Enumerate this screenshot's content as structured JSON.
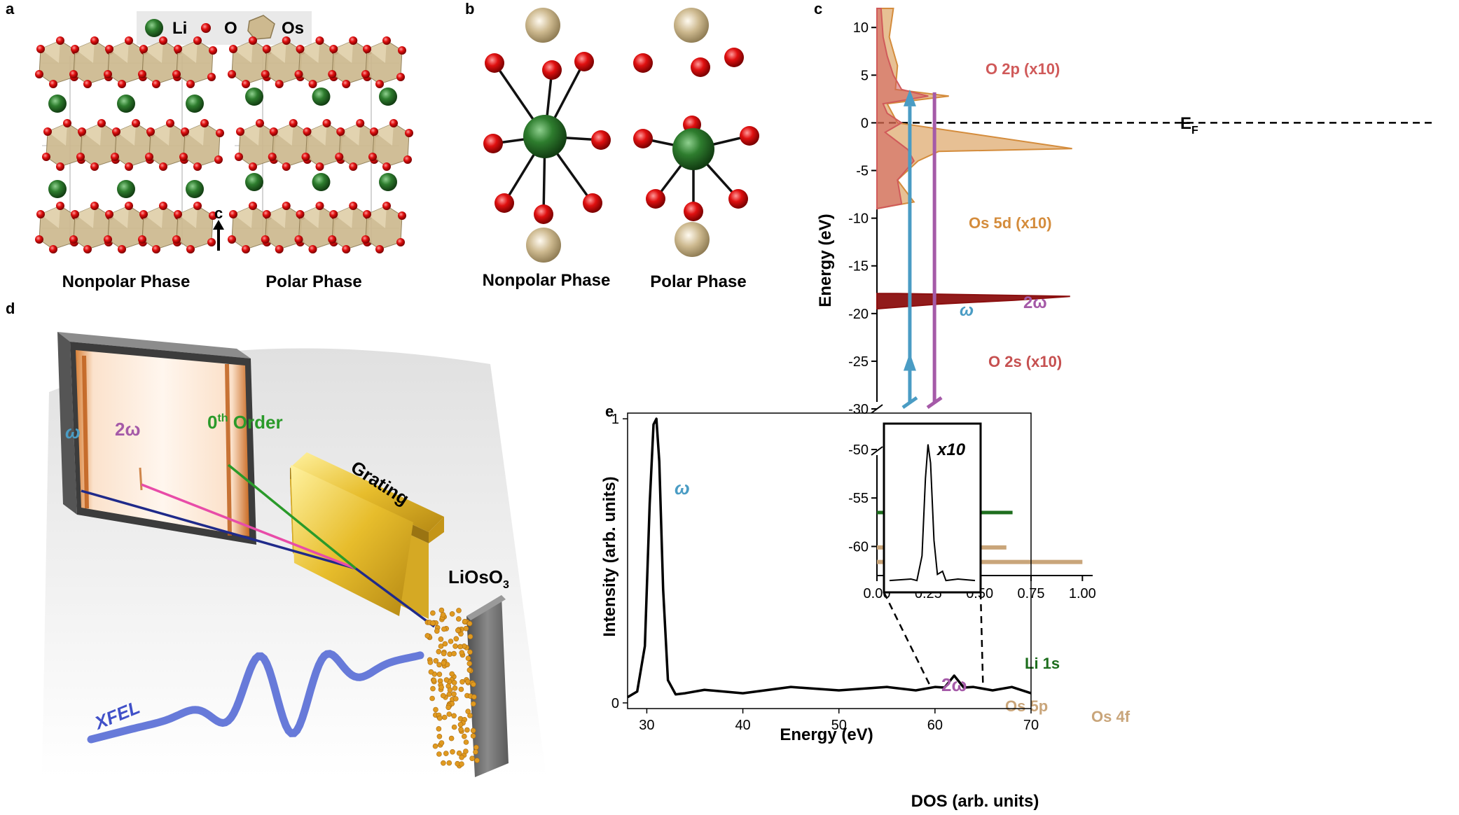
{
  "panels": {
    "a": {
      "letter": "a",
      "legend": [
        "Li",
        "O",
        "Os"
      ],
      "axis_label": "c",
      "captions": [
        "Nonpolar Phase",
        "Polar Phase"
      ]
    },
    "b": {
      "letter": "b",
      "captions": [
        "Nonpolar Phase",
        "Polar Phase"
      ]
    },
    "c": {
      "letter": "c",
      "ylabel": "Energy (eV)",
      "xlabel": "DOS  (arb. units)",
      "upper_yticks": [
        "10",
        "5",
        "0",
        "-5",
        "-10",
        "-15",
        "-20",
        "-25",
        "-30"
      ],
      "lower_yticks": [
        "-50",
        "-55",
        "-60"
      ],
      "xticks": [
        "0.00",
        "0.25",
        "0.50",
        "0.75",
        "1.00"
      ],
      "fermi_label": "E",
      "fermi_sub": "F",
      "labels": {
        "o2p": "O 2p (x10)",
        "os5d": "Os 5d (x10)",
        "o2s": "O 2s (x10)",
        "li1s": "Li 1s",
        "os5p": "Os 5p",
        "os4f": "Os 4f",
        "omega": "ω",
        "two_omega": "2ω"
      }
    },
    "d": {
      "letter": "d",
      "omega": "ω",
      "two_omega": "2ω",
      "zero_order": "0",
      "zero_order_sup": "th",
      "zero_order_word": " Order",
      "grating": "Grating",
      "sample": "LiOsO",
      "sample_sub": "3",
      "xfel": "XFEL"
    },
    "e": {
      "letter": "e",
      "ylabel": "Intensity (arb. units)",
      "xlabel": "Energy (eV)",
      "xticks": [
        "30",
        "40",
        "50",
        "60",
        "70"
      ],
      "yticks": [
        "1",
        "0"
      ],
      "omega": "ω",
      "two_omega": "2ω",
      "inset_label": "x10"
    }
  },
  "colors": {
    "li": "#2e7d2e",
    "oxygen": "#e01010",
    "os": "#cdb98f",
    "omega": "#4a9cc4",
    "two_omega": "#a55aa8",
    "zero_order": "#2a9a2a",
    "o2p": "#d05a5a",
    "os5d": "#d48c3c",
    "o2s": "#8b0f0f",
    "li1s": "#1e6e1e",
    "os_core": "#c9a57a",
    "xfel": "#4a5fd0"
  },
  "chart_data": [
    {
      "panel": "e",
      "type": "line",
      "xlabel": "Energy (eV)",
      "ylabel": "Intensity (arb. units)",
      "xlim": [
        28,
        70
      ],
      "ylim": [
        -0.02,
        1.02
      ],
      "x": [
        28,
        29,
        29.8,
        30.3,
        30.7,
        31.0,
        31.3,
        31.7,
        32.2,
        33,
        34,
        36,
        40,
        45,
        50,
        55,
        58,
        60,
        61,
        62,
        63,
        64,
        66,
        68,
        70
      ],
      "values": [
        0.02,
        0.04,
        0.2,
        0.7,
        0.98,
        1.0,
        0.85,
        0.4,
        0.08,
        0.03,
        0.04,
        0.04,
        0.04,
        0.05,
        0.05,
        0.05,
        0.05,
        0.05,
        0.06,
        0.09,
        0.06,
        0.05,
        0.05,
        0.05,
        0.04
      ]
    },
    {
      "panel": "c",
      "type": "area",
      "xlabel": "DOS  (arb. units)",
      "ylabel": "Energy (eV)",
      "xlim": [
        0,
        1.05
      ],
      "ylim_upper": [
        -30,
        12
      ],
      "ylim_lower": [
        -63,
        -50
      ],
      "series": [
        {
          "name": "O 2p (x10)",
          "energy": [
            12,
            9,
            7,
            5,
            3.5,
            2.8,
            2,
            1,
            0,
            -1,
            -2.8,
            -4,
            -6,
            -8.5,
            -9
          ],
          "dos": [
            0.02,
            0.03,
            0.05,
            0.08,
            0.12,
            0.25,
            0.03,
            0.05,
            0.12,
            0.04,
            0.15,
            0.18,
            0.1,
            0.12,
            0.0
          ]
        },
        {
          "name": "Os 5d (x10)",
          "energy": [
            12,
            9,
            6,
            3.5,
            2.8,
            2,
            0,
            -2.7,
            -3,
            -4,
            -6,
            -8.3,
            -9
          ],
          "dos": [
            0.08,
            0.06,
            0.1,
            0.09,
            0.35,
            0.05,
            0.1,
            0.95,
            0.3,
            0.2,
            0.1,
            0.18,
            0.0
          ]
        },
        {
          "name": "O 2s (x10)",
          "energy": [
            -17.9,
            -18.2,
            -18.6,
            -19.0,
            -19.5
          ],
          "dos": [
            0.1,
            0.94,
            0.67,
            0.3,
            0.0
          ]
        },
        {
          "name": "Li 1s",
          "energy": [
            -56.5
          ],
          "dos": [
            0.66
          ]
        },
        {
          "name": "Os 5p",
          "energy": [
            -60.1
          ],
          "dos": [
            0.63
          ]
        },
        {
          "name": "Os 4f",
          "energy": [
            -61.6
          ],
          "dos": [
            1.0
          ]
        }
      ]
    }
  ]
}
